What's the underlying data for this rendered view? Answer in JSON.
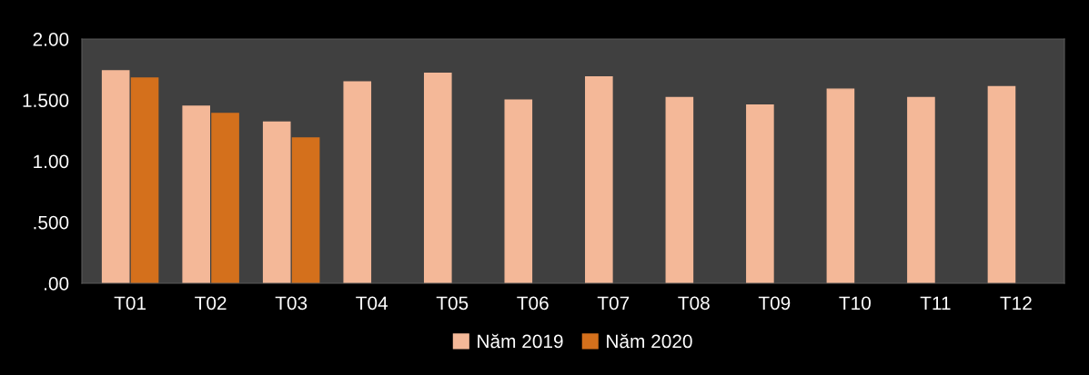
{
  "chart_data": {
    "type": "bar",
    "categories": [
      "T01",
      "T02",
      "T03",
      "T04",
      "T05",
      "T06",
      "T07",
      "T08",
      "T09",
      "T10",
      "T11",
      "T12"
    ],
    "series": [
      {
        "name": "Năm 2019",
        "color": "#f4b898",
        "values": [
          1.74,
          1.45,
          1.32,
          1.65,
          1.72,
          1.5,
          1.69,
          1.52,
          1.46,
          1.59,
          1.52,
          1.61
        ]
      },
      {
        "name": "Năm 2020",
        "color": "#d4701c",
        "values": [
          1.68,
          1.39,
          1.19,
          null,
          null,
          null,
          null,
          null,
          null,
          null,
          null,
          null
        ]
      }
    ],
    "ylim": [
      0,
      2
    ],
    "yticks": [
      {
        "value": 0,
        "label": ".00"
      },
      {
        "value": 0.5,
        "label": ".500"
      },
      {
        "value": 1,
        "label": "1.00"
      },
      {
        "value": 1.5,
        "label": "1.500"
      },
      {
        "value": 2,
        "label": "2.00"
      }
    ],
    "grid": false,
    "legend": "bottom"
  }
}
